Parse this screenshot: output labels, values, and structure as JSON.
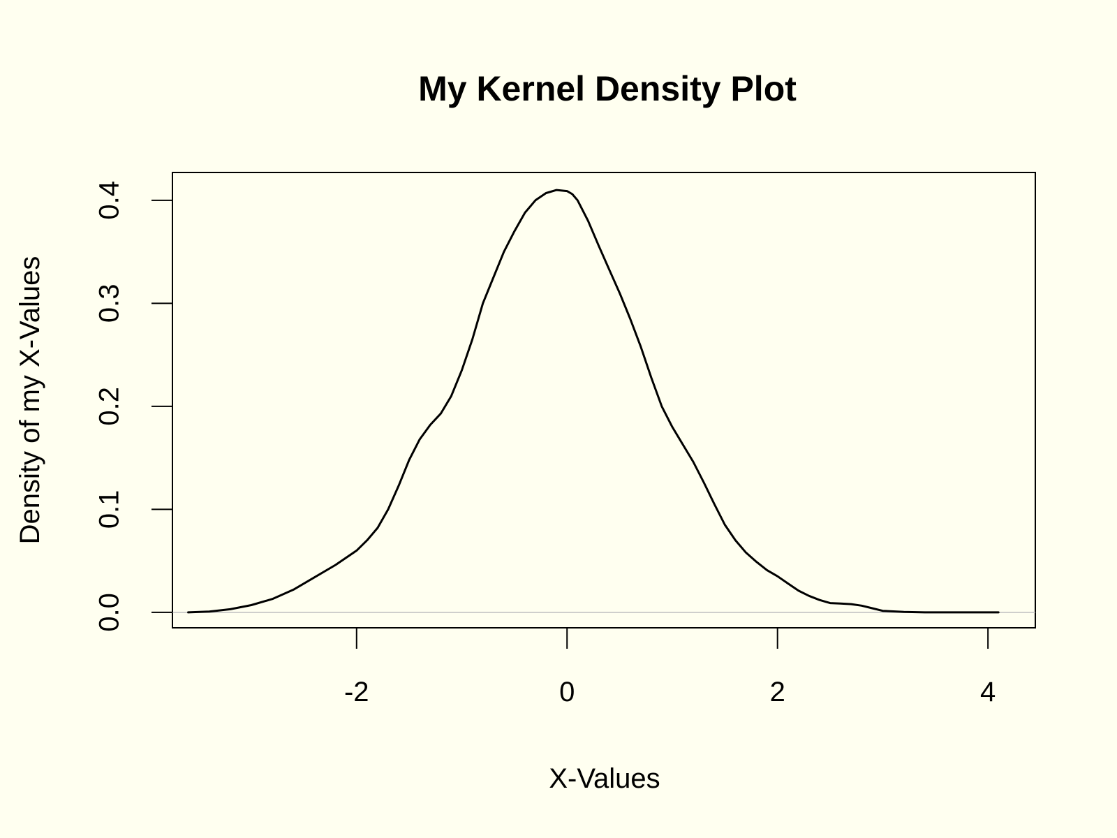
{
  "chart_data": {
    "type": "line",
    "title": "My Kernel Density Plot",
    "xlabel": "X-Values",
    "ylabel": "Density of my X-Values",
    "xlim": [
      -3.75,
      4.45
    ],
    "ylim": [
      -0.015,
      0.427
    ],
    "x_ticks": [
      -2,
      0,
      2,
      4
    ],
    "y_ticks": [
      0.0,
      0.1,
      0.2,
      0.3,
      0.4
    ],
    "x_tick_labels": [
      "-2",
      "0",
      "2",
      "4"
    ],
    "y_tick_labels": [
      "0.0",
      "0.1",
      "0.2",
      "0.3",
      "0.4"
    ],
    "grid": false,
    "legend": "none",
    "baseline": 0.0,
    "colors": {
      "background": "#fffff0",
      "line": "#000000",
      "baseline": "#bebebe"
    },
    "series": [
      {
        "x": [
          -3.6,
          -3.4,
          -3.2,
          -3.0,
          -2.8,
          -2.6,
          -2.4,
          -2.2,
          -2.0,
          -1.9,
          -1.8,
          -1.7,
          -1.6,
          -1.5,
          -1.4,
          -1.3,
          -1.2,
          -1.1,
          -1.0,
          -0.9,
          -0.8,
          -0.7,
          -0.6,
          -0.5,
          -0.4,
          -0.3,
          -0.2,
          -0.1,
          0.0,
          0.05,
          0.1,
          0.2,
          0.3,
          0.4,
          0.5,
          0.6,
          0.7,
          0.8,
          0.9,
          1.0,
          1.1,
          1.2,
          1.3,
          1.4,
          1.5,
          1.6,
          1.7,
          1.8,
          1.9,
          2.0,
          2.1,
          2.2,
          2.3,
          2.4,
          2.5,
          2.6,
          2.7,
          2.8,
          2.9,
          3.0,
          3.2,
          3.4,
          3.6,
          3.8,
          4.1
        ],
        "y": [
          0.0,
          0.0008,
          0.003,
          0.007,
          0.013,
          0.022,
          0.034,
          0.046,
          0.06,
          0.07,
          0.082,
          0.1,
          0.123,
          0.148,
          0.168,
          0.182,
          0.193,
          0.21,
          0.235,
          0.265,
          0.3,
          0.325,
          0.35,
          0.37,
          0.388,
          0.4,
          0.407,
          0.41,
          0.409,
          0.406,
          0.4,
          0.38,
          0.356,
          0.333,
          0.31,
          0.285,
          0.258,
          0.228,
          0.2,
          0.18,
          0.163,
          0.146,
          0.126,
          0.105,
          0.085,
          0.07,
          0.058,
          0.049,
          0.041,
          0.035,
          0.028,
          0.021,
          0.016,
          0.012,
          0.009,
          0.0085,
          0.008,
          0.0065,
          0.004,
          0.0015,
          0.0004,
          0.0,
          0.0,
          0.0,
          0.0
        ]
      }
    ]
  }
}
